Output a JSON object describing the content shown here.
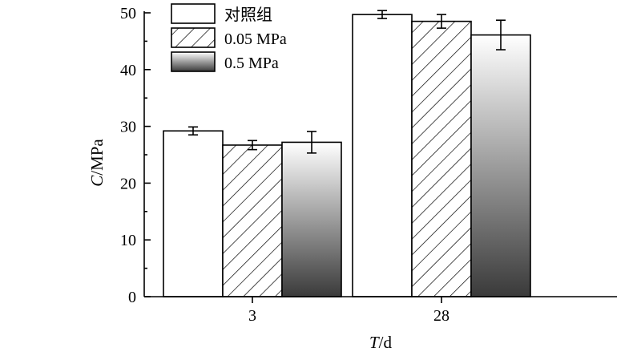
{
  "chart_data": {
    "type": "bar",
    "categories": [
      "3",
      "28"
    ],
    "xlabel_italic": "T",
    "xlabel_unit": "/d",
    "ylabel_italic": "C",
    "ylabel_unit": "/MPa",
    "ylim": [
      0,
      50
    ],
    "yticks": [
      0,
      10,
      20,
      30,
      40,
      50
    ],
    "grid": false,
    "legend_position": "top-left",
    "series": [
      {
        "name": "对照组",
        "fill": "white",
        "values": [
          29.2,
          49.7
        ],
        "errors": [
          0.7,
          0.7
        ]
      },
      {
        "name": "0.05 MPa",
        "fill": "hatch",
        "values": [
          26.7,
          48.5
        ],
        "errors": [
          0.8,
          1.2
        ]
      },
      {
        "name": "0.5 MPa",
        "fill": "gradient",
        "values": [
          27.2,
          46.1
        ],
        "errors": [
          1.9,
          2.6
        ]
      }
    ]
  }
}
